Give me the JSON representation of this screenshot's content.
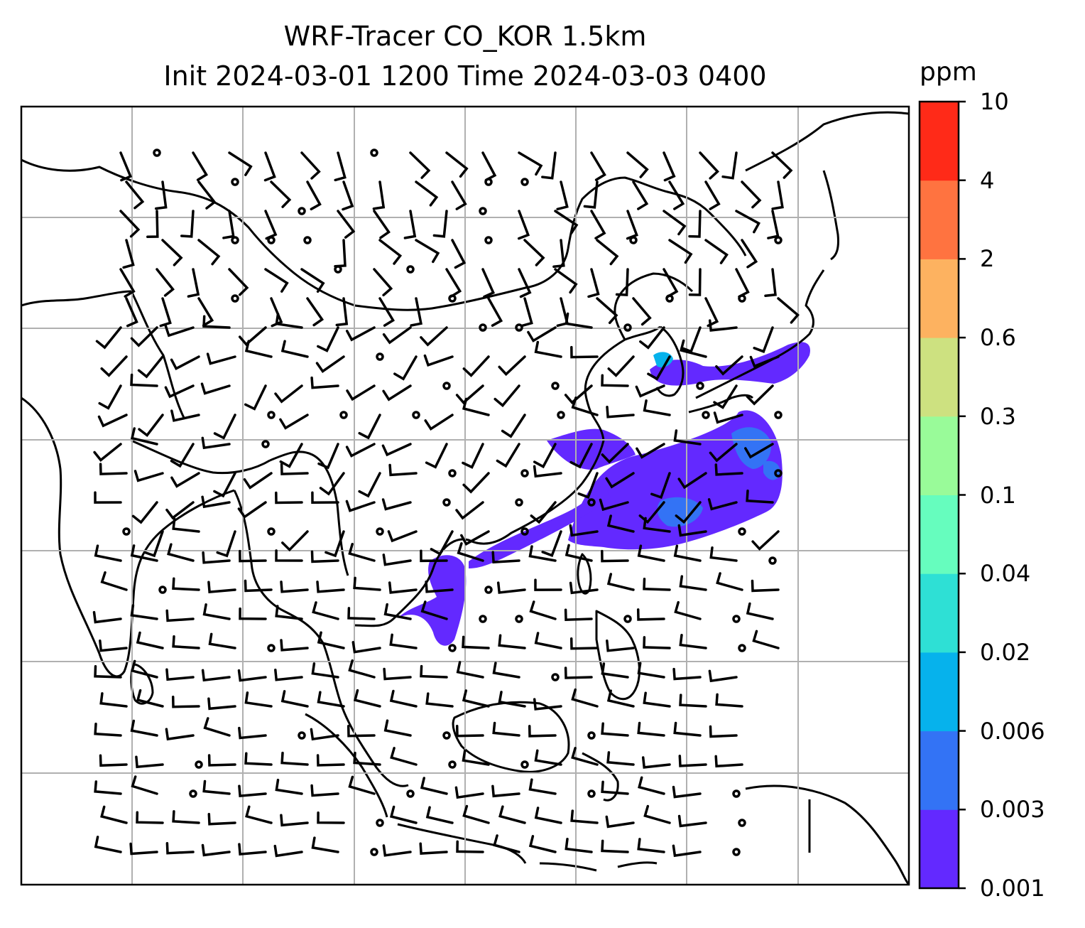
{
  "title": {
    "line1": "WRF-Tracer CO_KOR 1.5km",
    "line2": "Init 2024-03-01 1200 Time 2024-03-03 0400"
  },
  "colorbar": {
    "unit": "ppm",
    "levels": [
      {
        "label": "0.001",
        "color": "#6329ff"
      },
      {
        "label": "0.003",
        "color": "#3373f5"
      },
      {
        "label": "0.006",
        "color": "#06b2ec"
      },
      {
        "label": "0.02",
        "color": "#2ee0d5"
      },
      {
        "label": "0.04",
        "color": "#66fdbe"
      },
      {
        "label": "0.1",
        "color": "#99fb99"
      },
      {
        "label": "0.3",
        "color": "#cde180"
      },
      {
        "label": "0.6",
        "color": "#fdb260"
      },
      {
        "label": "2",
        "color": "#ff7340"
      },
      {
        "label": "4",
        "color": "#ff2a18"
      },
      {
        "label": "10",
        "color": null
      }
    ]
  },
  "map": {
    "gridlines": true,
    "coastlines": true,
    "wind_barbs": true
  }
}
